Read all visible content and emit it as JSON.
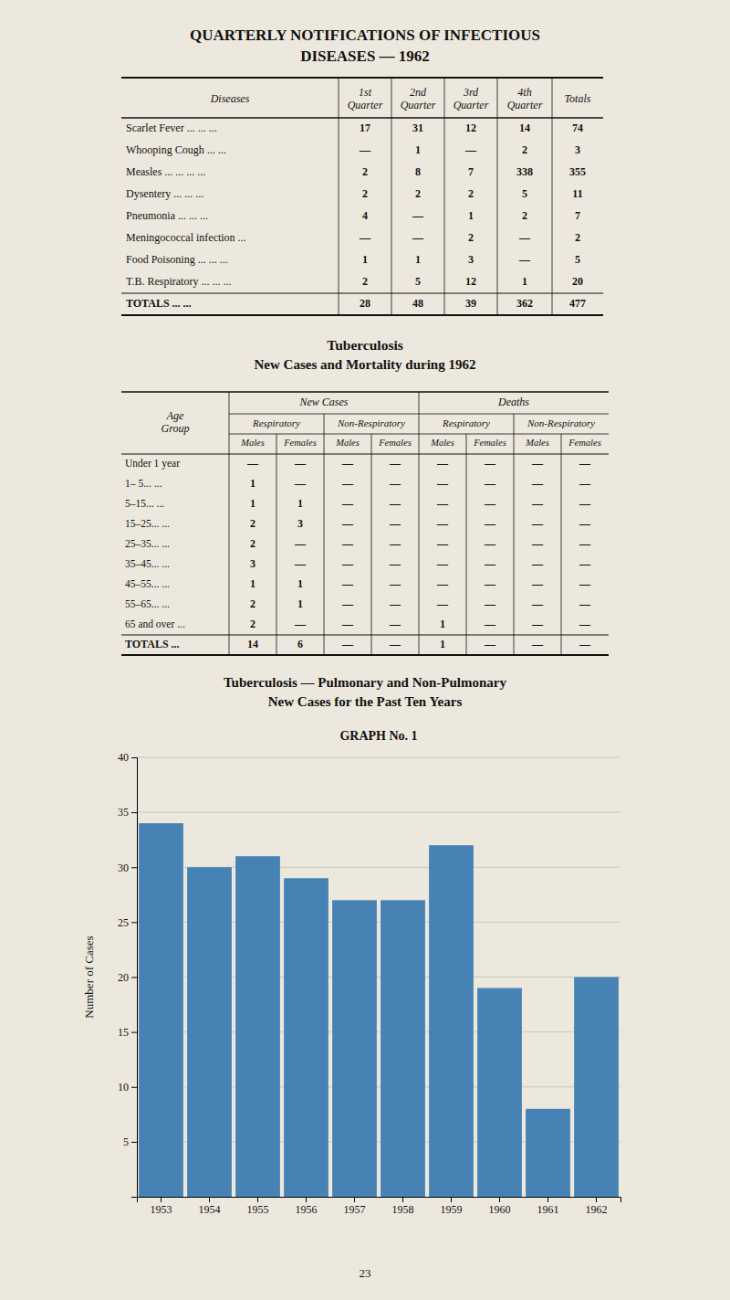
{
  "background": "#ede8dd",
  "title": [
    "QUARTERLY NOTIFICATIONS OF INFECTIOUS",
    "DISEASES — 1962"
  ],
  "tables": [
    {
      "header": [
        "Diseases",
        "1st\nQuarter",
        "2nd\nQuarter",
        "3rd\nQuarter",
        "4th\nQuarter",
        "Totals"
      ],
      "row_labels": [
        "Scarlet Fever   ...   ...   ...",
        "Whooping Cough   ...   ...",
        "Measles   ...   ...   ...   ...",
        "Dysentery   ...   ...   ...",
        "Pneumonia   ...   ...   ...",
        "Meningococcal infection   ...",
        "Food Poisoning   ...   ...   ...",
        "T.B. Respiratory ...   ...   ..."
      ],
      "rows": [
        [
          "17",
          "31",
          "12",
          "14",
          "74"
        ],
        [
          "—",
          "1",
          "—",
          "2",
          "3"
        ],
        [
          "2",
          "8",
          "7",
          "338",
          "355"
        ],
        [
          "2",
          "2",
          "2",
          "5",
          "11"
        ],
        [
          "4",
          "—",
          "1",
          "2",
          "7"
        ],
        [
          "—",
          "—",
          "2",
          "—",
          "2"
        ],
        [
          "1",
          "1",
          "3",
          "—",
          "5"
        ],
        [
          "2",
          "5",
          "12",
          "1",
          "20"
        ]
      ],
      "totals_label": "TOTALS   ...   ...",
      "totals": [
        "28",
        "48",
        "39",
        "362",
        "477"
      ]
    },
    {
      "title": "Tuberculosis",
      "subtitle": "New Cases and Mortality during 1962",
      "age_header": "Age\nGroup",
      "groups": [
        "New Cases",
        "Deaths"
      ],
      "subgroups": [
        "Respiratory",
        "Non-Respiratory",
        "Respiratory",
        "Non-Respiratory"
      ],
      "columns": [
        "Males",
        "Females",
        "Males",
        "Females",
        "Males",
        "Females",
        "Males",
        "Females"
      ],
      "row_labels": [
        "Under 1 year",
        " 1– 5...   ...",
        " 5–15...   ...",
        "15–25...   ...",
        "25–35...   ...",
        "35–45...   ...",
        "45–55...   ...",
        "55–65...   ...",
        "65 and over ..."
      ],
      "rows": [
        [
          "—",
          "—",
          "—",
          "—",
          "—",
          "—",
          "—",
          "—"
        ],
        [
          "1",
          "—",
          "—",
          "—",
          "—",
          "—",
          "—",
          "—"
        ],
        [
          "1",
          "1",
          "—",
          "—",
          "—",
          "—",
          "—",
          "—"
        ],
        [
          "2",
          "3",
          "—",
          "—",
          "—",
          "—",
          "—",
          "—"
        ],
        [
          "2",
          "—",
          "—",
          "—",
          "—",
          "—",
          "—",
          "—"
        ],
        [
          "3",
          "—",
          "—",
          "—",
          "—",
          "—",
          "—",
          "—"
        ],
        [
          "1",
          "1",
          "—",
          "—",
          "—",
          "—",
          "—",
          "—"
        ],
        [
          "2",
          "1",
          "—",
          "—",
          "—",
          "—",
          "—",
          "—"
        ],
        [
          "2",
          "—",
          "—",
          "—",
          "1",
          "—",
          "—",
          "—"
        ]
      ],
      "totals_label": "TOTALS ...",
      "totals": [
        "14",
        "6",
        "—",
        "—",
        "1",
        "—",
        "—",
        "—"
      ]
    }
  ],
  "chart_data": {
    "type": "bar",
    "title": "Tuberculosis — Pulmonary and Non-Pulmonary",
    "subtitle": "New Cases for the Past Ten Years",
    "annotations": [
      "GRAPH  No. 1"
    ],
    "y_label": "Number of Cases",
    "categories": [
      "1953",
      "1954",
      "1955",
      "1956",
      "1957",
      "1958",
      "1959",
      "1960",
      "1961",
      "1962"
    ],
    "values": [
      34,
      30,
      31,
      29,
      27,
      27,
      32,
      19,
      8,
      20
    ],
    "color": "#4682b4",
    "ylim": [
      0,
      40
    ],
    "yticks": [
      5,
      10,
      15,
      20,
      25,
      30,
      35,
      40
    ],
    "grid": true
  },
  "page_number": "23"
}
